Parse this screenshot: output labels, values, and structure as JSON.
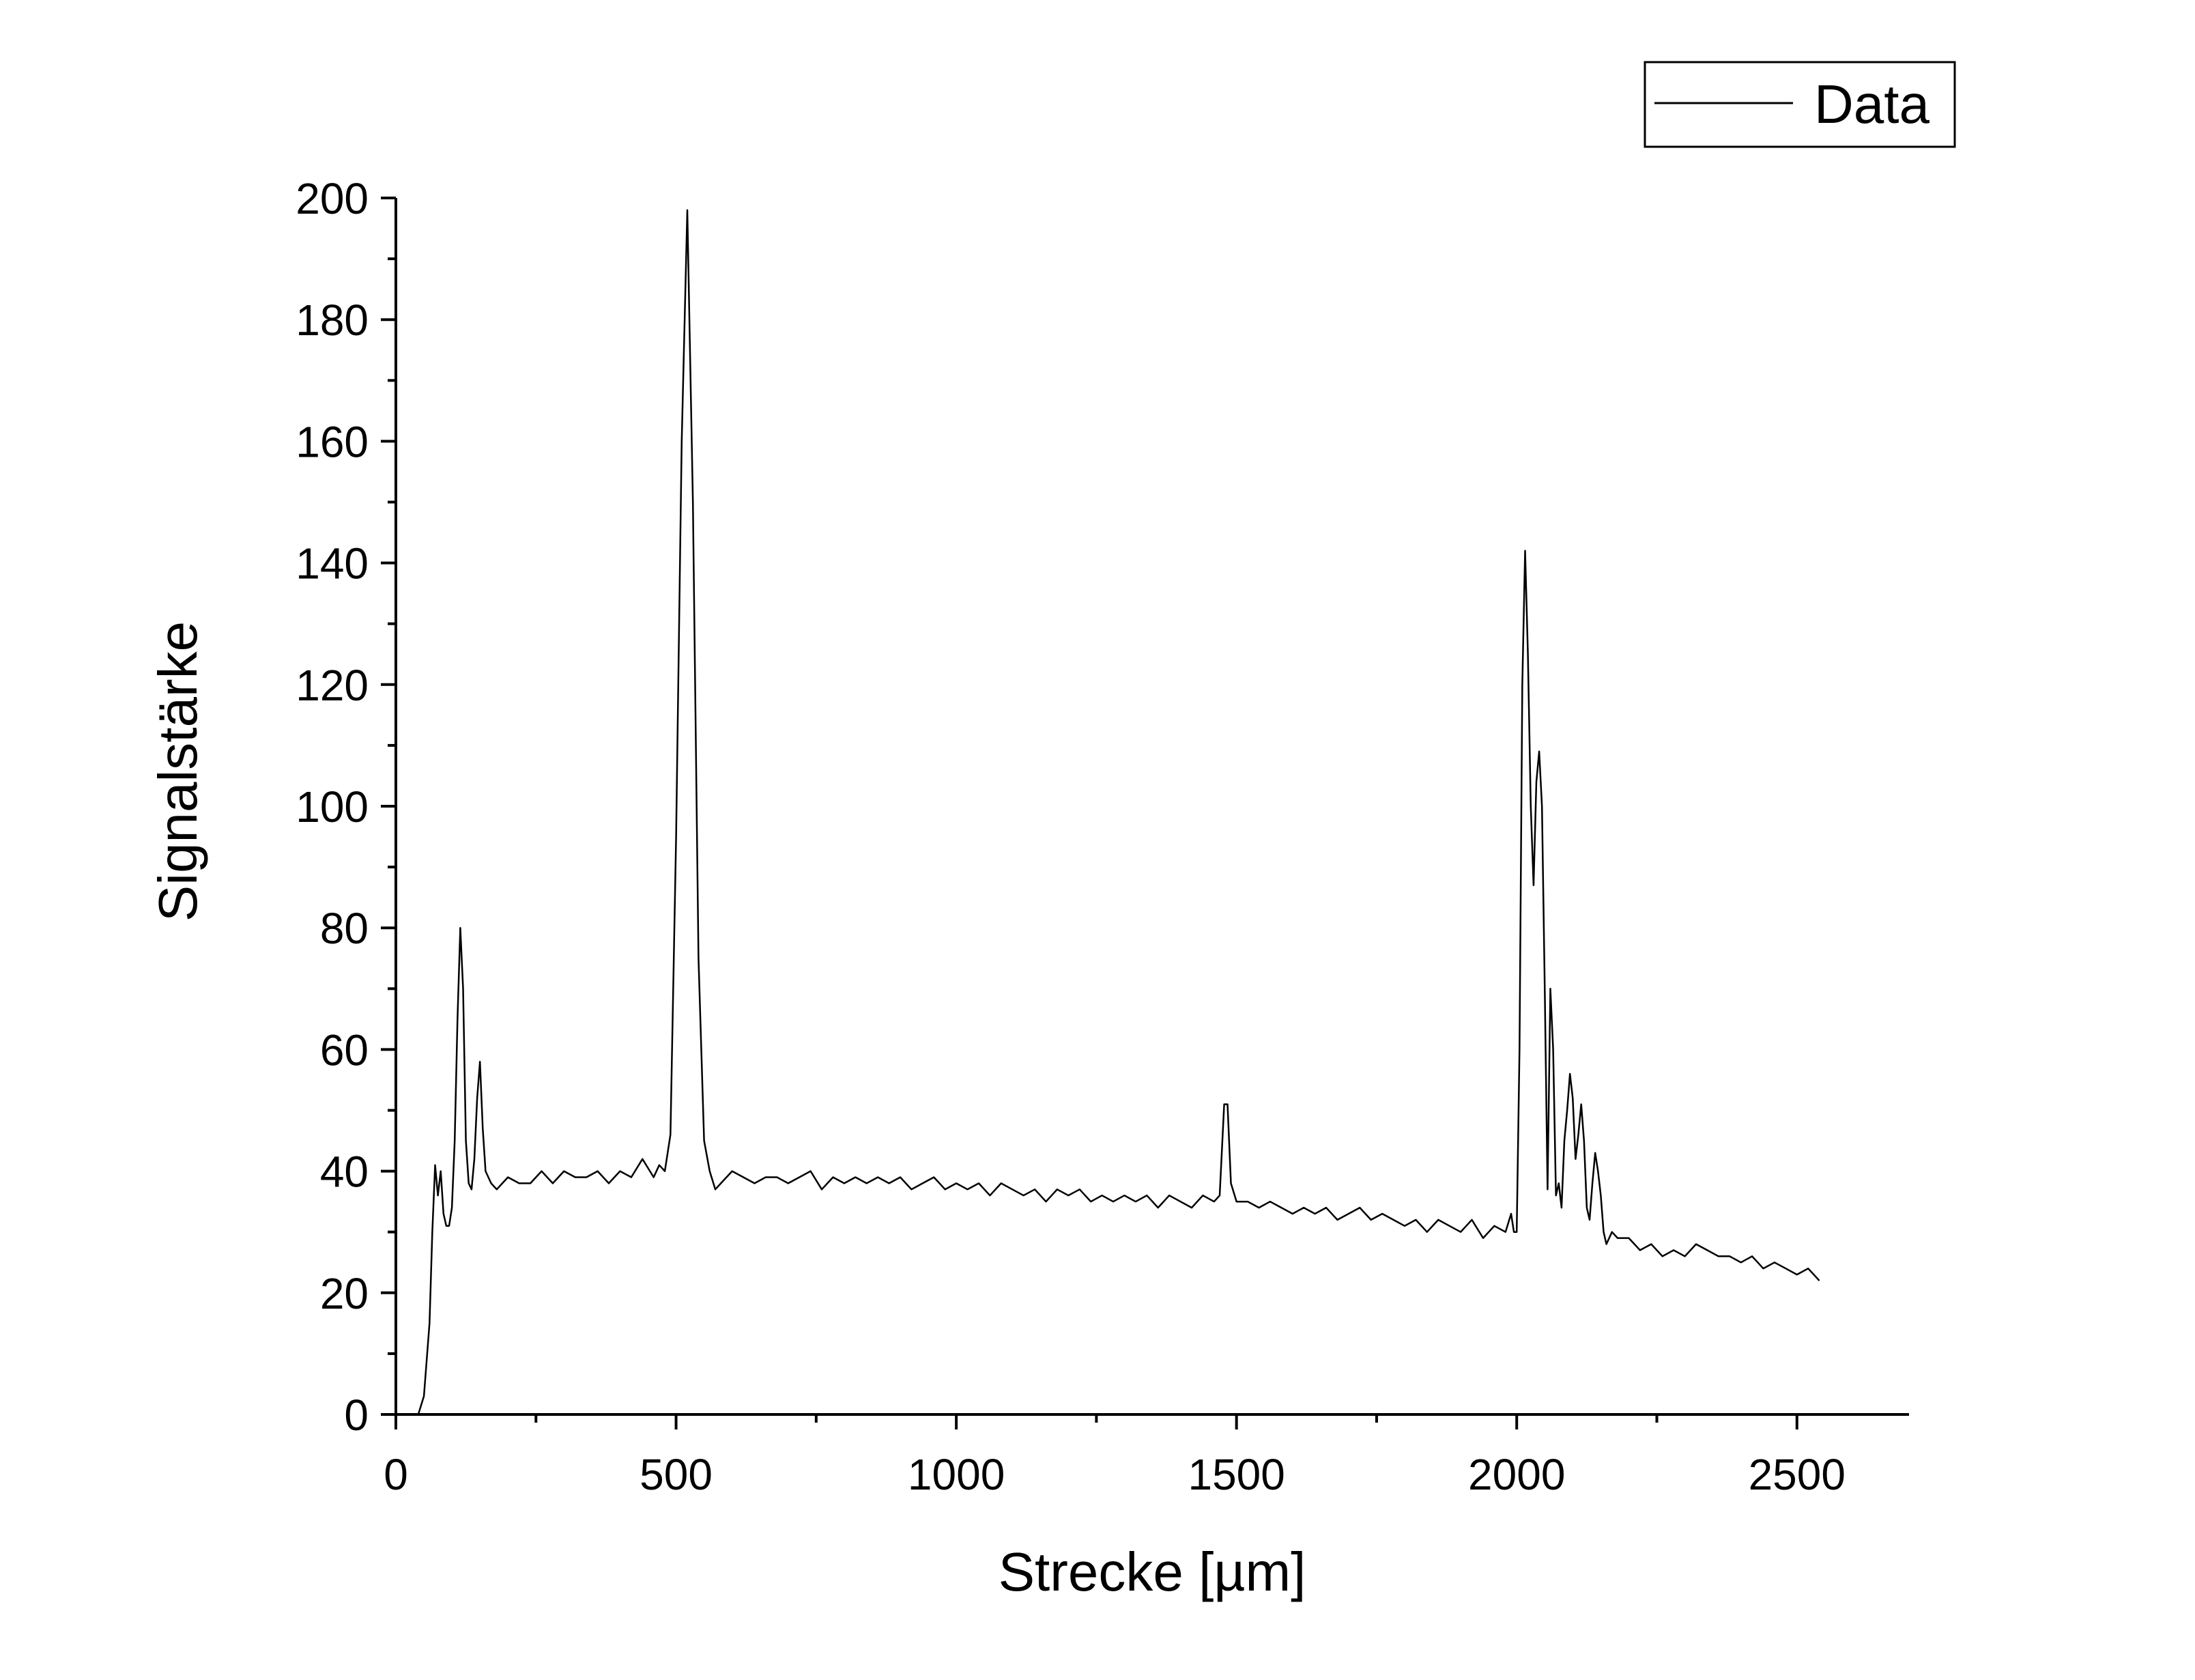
{
  "chart_data": {
    "type": "line",
    "xlabel": "Strecke [µm]",
    "ylabel": "Signalstärke",
    "xlim": [
      0,
      2700
    ],
    "ylim": [
      0,
      200
    ],
    "xticks": [
      0,
      500,
      1000,
      1500,
      2000,
      2500
    ],
    "yticks": [
      0,
      20,
      40,
      60,
      80,
      100,
      120,
      140,
      160,
      180,
      200
    ],
    "legend": "top-right",
    "x": [
      40,
      50,
      60,
      65,
      70,
      75,
      80,
      85,
      90,
      95,
      100,
      105,
      110,
      115,
      120,
      125,
      130,
      135,
      140,
      145,
      150,
      155,
      160,
      170,
      180,
      200,
      220,
      240,
      260,
      280,
      300,
      320,
      340,
      360,
      380,
      400,
      420,
      440,
      460,
      470,
      480,
      490,
      500,
      510,
      520,
      530,
      540,
      550,
      560,
      570,
      580,
      600,
      620,
      640,
      660,
      680,
      700,
      720,
      740,
      760,
      780,
      800,
      820,
      840,
      860,
      880,
      900,
      920,
      940,
      960,
      980,
      1000,
      1020,
      1040,
      1060,
      1080,
      1100,
      1120,
      1140,
      1160,
      1180,
      1200,
      1220,
      1240,
      1260,
      1280,
      1300,
      1320,
      1340,
      1360,
      1380,
      1400,
      1420,
      1440,
      1460,
      1470,
      1478,
      1484,
      1490,
      1500,
      1520,
      1540,
      1560,
      1580,
      1600,
      1620,
      1640,
      1660,
      1680,
      1700,
      1720,
      1740,
      1760,
      1780,
      1800,
      1820,
      1840,
      1860,
      1880,
      1900,
      1920,
      1940,
      1960,
      1980,
      1990,
      1995,
      2000,
      2005,
      2010,
      2015,
      2020,
      2025,
      2030,
      2035,
      2040,
      2045,
      2050,
      2055,
      2060,
      2065,
      2070,
      2075,
      2080,
      2085,
      2090,
      2095,
      2100,
      2105,
      2110,
      2115,
      2120,
      2125,
      2130,
      2135,
      2140,
      2145,
      2150,
      2155,
      2160,
      2170,
      2180,
      2200,
      2220,
      2240,
      2260,
      2280,
      2300,
      2320,
      2340,
      2360,
      2380,
      2400,
      2420,
      2440,
      2460,
      2480,
      2500,
      2520,
      2540
    ],
    "series": [
      {
        "name": "Data",
        "color": "#000000",
        "values": [
          0,
          3,
          15,
          30,
          41,
          36,
          40,
          33,
          31,
          31,
          34,
          45,
          65,
          80,
          70,
          45,
          38,
          37,
          42,
          52,
          58,
          47,
          40,
          38,
          37,
          39,
          38,
          38,
          40,
          38,
          40,
          39,
          39,
          40,
          38,
          40,
          39,
          42,
          39,
          41,
          40,
          46,
          95,
          160,
          198,
          150,
          75,
          45,
          40,
          37,
          38,
          40,
          39,
          38,
          39,
          39,
          38,
          39,
          40,
          37,
          39,
          38,
          39,
          38,
          39,
          38,
          39,
          37,
          38,
          39,
          37,
          38,
          37,
          38,
          36,
          38,
          37,
          36,
          37,
          35,
          37,
          36,
          37,
          35,
          36,
          35,
          36,
          35,
          36,
          34,
          36,
          35,
          34,
          36,
          35,
          36,
          51,
          51,
          38,
          35,
          35,
          34,
          35,
          34,
          33,
          34,
          33,
          34,
          32,
          33,
          34,
          32,
          33,
          32,
          31,
          32,
          30,
          32,
          31,
          30,
          32,
          29,
          31,
          30,
          33,
          30,
          30,
          60,
          120,
          142,
          125,
          100,
          87,
          104,
          109,
          100,
          70,
          37,
          70,
          60,
          36,
          38,
          34,
          45,
          50,
          56,
          52,
          42,
          46,
          51,
          45,
          34,
          32,
          38,
          43,
          40,
          36,
          30,
          28,
          30,
          29,
          29,
          27,
          28,
          26,
          27,
          26,
          28,
          27,
          26,
          26,
          25,
          26,
          24,
          25,
          24,
          23,
          24,
          22
        ]
      }
    ]
  }
}
